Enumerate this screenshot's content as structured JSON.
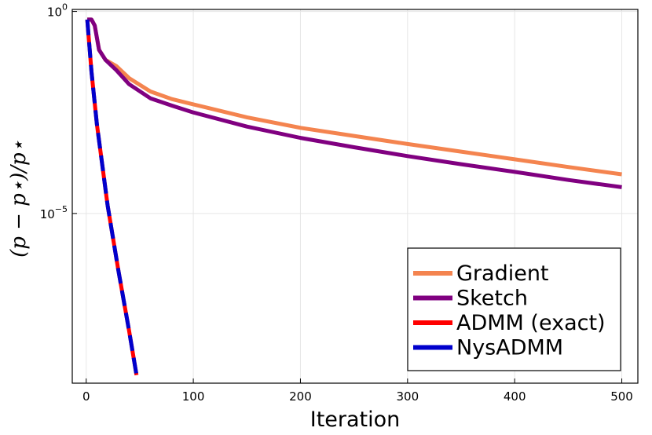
{
  "chart_data": {
    "type": "line",
    "xlabel": "Iteration",
    "ylabel": "(p − p⋆)/p⋆",
    "xlim": [
      -13,
      515
    ],
    "ylim_log10": [
      -9.2,
      0.05
    ],
    "yscale": "log",
    "grid": true,
    "legend": "bottom-right",
    "x_ticks": [
      {
        "value": 0,
        "label": "0"
      },
      {
        "value": 100,
        "label": "100"
      },
      {
        "value": 200,
        "label": "200"
      },
      {
        "value": 300,
        "label": "300"
      },
      {
        "value": 400,
        "label": "400"
      },
      {
        "value": 500,
        "label": "500"
      }
    ],
    "y_ticks": [
      {
        "exp": 0,
        "base": "10",
        "sup": "0"
      },
      {
        "exp": -5,
        "base": "10",
        "sup": "−5"
      }
    ],
    "series": [
      {
        "name": "Gradient",
        "color": "#f4844f",
        "dashed": false,
        "log10_values": [
          [
            1,
            -0.2
          ],
          [
            5,
            -0.2
          ],
          [
            8,
            -0.35
          ],
          [
            12,
            -0.95
          ],
          [
            18,
            -1.2
          ],
          [
            28,
            -1.35
          ],
          [
            40,
            -1.65
          ],
          [
            60,
            -1.98
          ],
          [
            80,
            -2.17
          ],
          [
            100,
            -2.3
          ],
          [
            150,
            -2.62
          ],
          [
            200,
            -2.88
          ],
          [
            250,
            -3.08
          ],
          [
            300,
            -3.28
          ],
          [
            350,
            -3.47
          ],
          [
            400,
            -3.66
          ],
          [
            450,
            -3.85
          ],
          [
            500,
            -4.03
          ]
        ]
      },
      {
        "name": "Sketch",
        "color": "#800080",
        "dashed": false,
        "log10_values": [
          [
            1,
            -0.2
          ],
          [
            5,
            -0.2
          ],
          [
            8,
            -0.35
          ],
          [
            12,
            -0.95
          ],
          [
            18,
            -1.2
          ],
          [
            28,
            -1.45
          ],
          [
            40,
            -1.8
          ],
          [
            60,
            -2.15
          ],
          [
            80,
            -2.33
          ],
          [
            100,
            -2.5
          ],
          [
            150,
            -2.85
          ],
          [
            200,
            -3.13
          ],
          [
            250,
            -3.36
          ],
          [
            300,
            -3.58
          ],
          [
            350,
            -3.78
          ],
          [
            400,
            -3.97
          ],
          [
            450,
            -4.17
          ],
          [
            500,
            -4.35
          ]
        ]
      },
      {
        "name": "ADMM (exact)",
        "color": "#ff0000",
        "dashed": false,
        "log10_values": [
          [
            1,
            -0.2
          ],
          [
            5,
            -1.5
          ],
          [
            10,
            -2.8
          ],
          [
            15,
            -3.8
          ],
          [
            20,
            -4.8
          ],
          [
            30,
            -6.4
          ],
          [
            40,
            -7.9
          ],
          [
            47,
            -9.0
          ]
        ]
      },
      {
        "name": "NysADMM",
        "color": "#0000cc",
        "dashed": true,
        "log10_values": [
          [
            1,
            -0.2
          ],
          [
            5,
            -1.5
          ],
          [
            10,
            -2.8
          ],
          [
            15,
            -3.8
          ],
          [
            20,
            -4.8
          ],
          [
            30,
            -6.4
          ],
          [
            40,
            -7.9
          ],
          [
            47,
            -9.0
          ]
        ]
      }
    ]
  }
}
